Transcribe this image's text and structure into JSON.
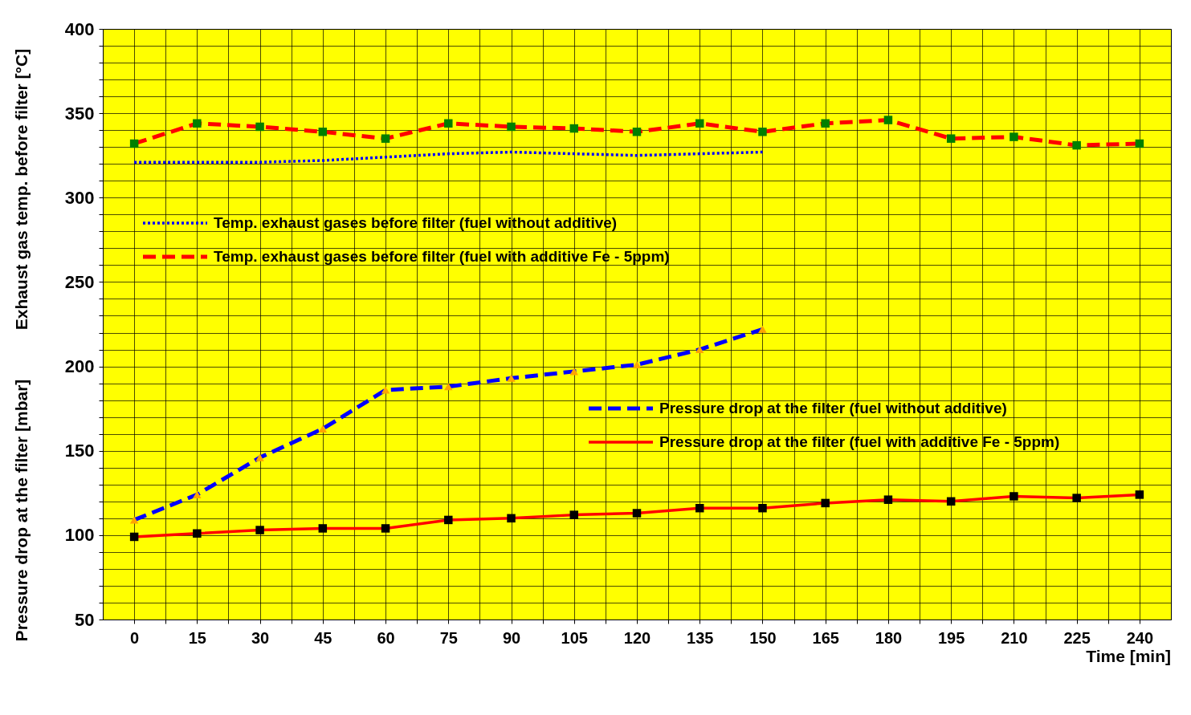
{
  "chart_data": {
    "type": "line",
    "xlabel": "Time [min]",
    "ylabel": "Exhaust gas temp. before filter [°C]",
    "annotations": [
      "Pressure drop at the filter [mbar]"
    ],
    "x": [
      0,
      15,
      30,
      45,
      60,
      75,
      90,
      105,
      120,
      135,
      150,
      165,
      180,
      195,
      210,
      225,
      240
    ],
    "xlim": [
      -7.5,
      247.5
    ],
    "xticks": [
      0,
      {
        "value": 7.5,
        "label": null
      },
      15,
      {
        "value": 22.5,
        "label": null
      },
      30,
      {
        "value": 37.5,
        "label": null
      },
      45,
      {
        "value": 52.5,
        "label": null
      },
      60,
      {
        "value": 67.5,
        "label": null
      },
      75,
      {
        "value": 82.5,
        "label": null
      },
      90,
      {
        "value": 97.5,
        "label": null
      },
      105,
      {
        "value": 112.5,
        "label": null
      },
      120,
      {
        "value": 127.5,
        "label": null
      },
      135,
      {
        "value": 142.5,
        "label": null
      },
      150,
      {
        "value": 157.5,
        "label": null
      },
      165,
      {
        "value": 172.5,
        "label": null
      },
      180,
      {
        "value": 187.5,
        "label": null
      },
      195,
      {
        "value": 202.5,
        "label": null
      },
      210,
      {
        "value": 217.5,
        "label": null
      },
      225,
      {
        "value": 232.5,
        "label": null
      },
      240
    ],
    "ylim": [
      50,
      400
    ],
    "yticks": [
      50,
      {
        "value": 60,
        "label": null
      },
      {
        "value": 70,
        "label": null
      },
      {
        "value": 80,
        "label": null
      },
      {
        "value": 90,
        "label": null
      },
      100,
      {
        "value": 110,
        "label": null
      },
      {
        "value": 120,
        "label": null
      },
      {
        "value": 130,
        "label": null
      },
      {
        "value": 140,
        "label": null
      },
      150,
      {
        "value": 160,
        "label": null
      },
      {
        "value": 170,
        "label": null
      },
      {
        "value": 180,
        "label": null
      },
      {
        "value": 190,
        "label": null
      },
      200,
      {
        "value": 210,
        "label": null
      },
      {
        "value": 220,
        "label": null
      },
      {
        "value": 230,
        "label": null
      },
      {
        "value": 240,
        "label": null
      },
      250,
      {
        "value": 260,
        "label": null
      },
      {
        "value": 270,
        "label": null
      },
      {
        "value": 280,
        "label": null
      },
      {
        "value": 290,
        "label": null
      },
      300,
      {
        "value": 310,
        "label": null
      },
      {
        "value": 320,
        "label": null
      },
      {
        "value": 330,
        "label": null
      },
      {
        "value": 340,
        "label": null
      },
      350,
      {
        "value": 360,
        "label": null
      },
      {
        "value": 370,
        "label": null
      },
      {
        "value": 380,
        "label": null
      },
      {
        "value": 390,
        "label": null
      },
      400
    ],
    "grid": true,
    "legend": "left",
    "series": [
      {
        "name": "Temp. exhaust gases before filter (fuel without additive)",
        "color": "#0000ff",
        "line_style": "dotted",
        "marker": "none",
        "values": [
          321,
          321,
          321,
          322,
          324,
          326,
          327,
          326,
          325,
          326,
          327,
          null,
          null,
          null,
          null,
          null,
          null
        ]
      },
      {
        "name": "Temp. exhaust gases before filter (fuel with additive Fe - 5ppm)",
        "color": "#ff0000",
        "line_style": "dashed",
        "marker": "square",
        "colors": [
          "#008000",
          "#008000",
          "#008000",
          "#008000",
          "#008000",
          "#008000",
          "#008000",
          "#008000",
          "#008000",
          "#008000",
          "#008000",
          "#008000",
          "#008000",
          "#008000",
          "#008000",
          "#008000",
          "#008000"
        ],
        "values": [
          332,
          344,
          342,
          339,
          335,
          344,
          342,
          341,
          339,
          344,
          339,
          344,
          346,
          335,
          336,
          331,
          332
        ]
      },
      {
        "name": "Pressure drop at the filter (fuel without additive)",
        "color": "#0000ff",
        "line_style": "dashed",
        "marker": "triangle",
        "colors": [
          "#ffa500",
          "#ffa500",
          "#ffa500",
          "#ffa500",
          "#ffa500",
          "#ffa500",
          "#ffa500",
          "#ffa500",
          "#ffa500",
          "#ffa500",
          "#ffa500",
          null,
          null,
          null,
          null,
          null,
          null
        ],
        "values": [
          109,
          124,
          146,
          163,
          186,
          188,
          193,
          197,
          201,
          210,
          222,
          null,
          null,
          null,
          null,
          null,
          null
        ]
      },
      {
        "name": "Pressure drop at the filter (fuel with additive Fe - 5ppm)",
        "color": "#ff0000",
        "line_style": "solid",
        "marker": "square",
        "colors": [
          "#000000",
          "#000000",
          "#000000",
          "#000000",
          "#000000",
          "#000000",
          "#000000",
          "#000000",
          "#000000",
          "#000000",
          "#000000",
          "#000000",
          "#000000",
          "#000000",
          "#000000",
          "#000000",
          "#000000"
        ],
        "values": [
          99,
          101,
          103,
          104,
          104,
          109,
          110,
          112,
          113,
          116,
          116,
          119,
          121,
          120,
          123,
          122,
          124
        ]
      }
    ]
  }
}
